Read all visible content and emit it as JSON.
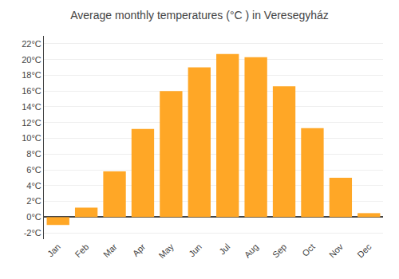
{
  "chart_data": {
    "type": "bar",
    "title": "Average monthly temperatures (°C ) in Veresegyház",
    "categories": [
      "Jan",
      "Feb",
      "Mar",
      "Apr",
      "May",
      "Jun",
      "Jul",
      "Aug",
      "Sep",
      "Oct",
      "Nov",
      "Dec"
    ],
    "values": [
      -1.0,
      1.2,
      5.8,
      11.2,
      16.0,
      19.0,
      20.7,
      20.3,
      16.6,
      11.3,
      5.0,
      0.5
    ],
    "color": "#FFA726",
    "ylim": [
      -2.8,
      23.0
    ],
    "yticks": [
      {
        "value": -2,
        "label": "-2°C"
      },
      {
        "value": 0,
        "label": "0°C"
      },
      {
        "value": 2,
        "label": "2°C"
      },
      {
        "value": 4,
        "label": "4°C"
      },
      {
        "value": 6,
        "label": "6°C"
      },
      {
        "value": 8,
        "label": "8°C"
      },
      {
        "value": 10,
        "label": "10°C"
      },
      {
        "value": 12,
        "label": "12°C"
      },
      {
        "value": 14,
        "label": "14°C"
      },
      {
        "value": 16,
        "label": "16°C"
      },
      {
        "value": 18,
        "label": "18°C"
      },
      {
        "value": 20,
        "label": "20°C"
      },
      {
        "value": 22,
        "label": "22°C"
      }
    ],
    "grid": true
  }
}
